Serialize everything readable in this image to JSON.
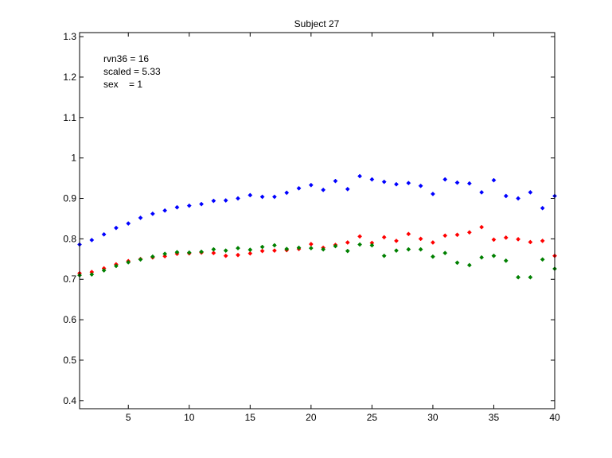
{
  "chart_data": {
    "type": "scatter",
    "title": "Subject 27",
    "xlabel": "",
    "ylabel": "",
    "xlim": [
      1,
      40
    ],
    "ylim": [
      0.38,
      1.31
    ],
    "xticks": [
      5,
      10,
      15,
      20,
      25,
      30,
      35,
      40
    ],
    "yticks": [
      0.4,
      0.5,
      0.6,
      0.7,
      0.8,
      0.9,
      1,
      1.1,
      1.2,
      1.3
    ],
    "annotations": [
      "rvn36 = 16",
      "scaled = 5.33",
      "sex    = 1"
    ],
    "grid": false,
    "x": [
      1,
      2,
      3,
      4,
      5,
      6,
      7,
      8,
      9,
      10,
      11,
      12,
      13,
      14,
      15,
      16,
      17,
      18,
      19,
      20,
      21,
      22,
      23,
      24,
      25,
      26,
      27,
      28,
      29,
      30,
      31,
      32,
      33,
      34,
      35,
      36,
      37,
      38,
      39,
      40
    ],
    "series": [
      {
        "color": "#0000ff",
        "values": [
          0.786,
          0.797,
          0.811,
          0.827,
          0.838,
          0.852,
          0.862,
          0.87,
          0.878,
          0.882,
          0.886,
          0.894,
          0.895,
          0.9,
          0.908,
          0.904,
          0.904,
          0.914,
          0.925,
          0.933,
          0.921,
          0.943,
          0.923,
          0.955,
          0.947,
          0.941,
          0.935,
          0.938,
          0.931,
          0.911,
          0.947,
          0.939,
          0.937,
          0.915,
          0.945,
          0.906,
          0.9,
          0.915,
          0.876,
          0.906
        ]
      },
      {
        "color": "#ff0000",
        "values": [
          0.715,
          0.718,
          0.727,
          0.737,
          0.745,
          0.75,
          0.754,
          0.757,
          0.763,
          0.764,
          0.766,
          0.765,
          0.758,
          0.76,
          0.764,
          0.77,
          0.771,
          0.772,
          0.775,
          0.787,
          0.778,
          0.785,
          0.791,
          0.806,
          0.79,
          0.804,
          0.795,
          0.812,
          0.8,
          0.791,
          0.808,
          0.81,
          0.816,
          0.829,
          0.798,
          0.803,
          0.799,
          0.792,
          0.795,
          0.758
        ]
      },
      {
        "color": "#008000",
        "values": [
          0.71,
          0.712,
          0.722,
          0.733,
          0.742,
          0.749,
          0.756,
          0.763,
          0.767,
          0.766,
          0.768,
          0.774,
          0.771,
          0.777,
          0.773,
          0.78,
          0.784,
          0.775,
          0.778,
          0.777,
          0.774,
          0.782,
          0.77,
          0.786,
          0.784,
          0.758,
          0.771,
          0.774,
          0.774,
          0.756,
          0.765,
          0.741,
          0.735,
          0.754,
          0.758,
          0.746,
          0.705,
          0.705,
          0.749,
          0.726
        ]
      }
    ]
  }
}
